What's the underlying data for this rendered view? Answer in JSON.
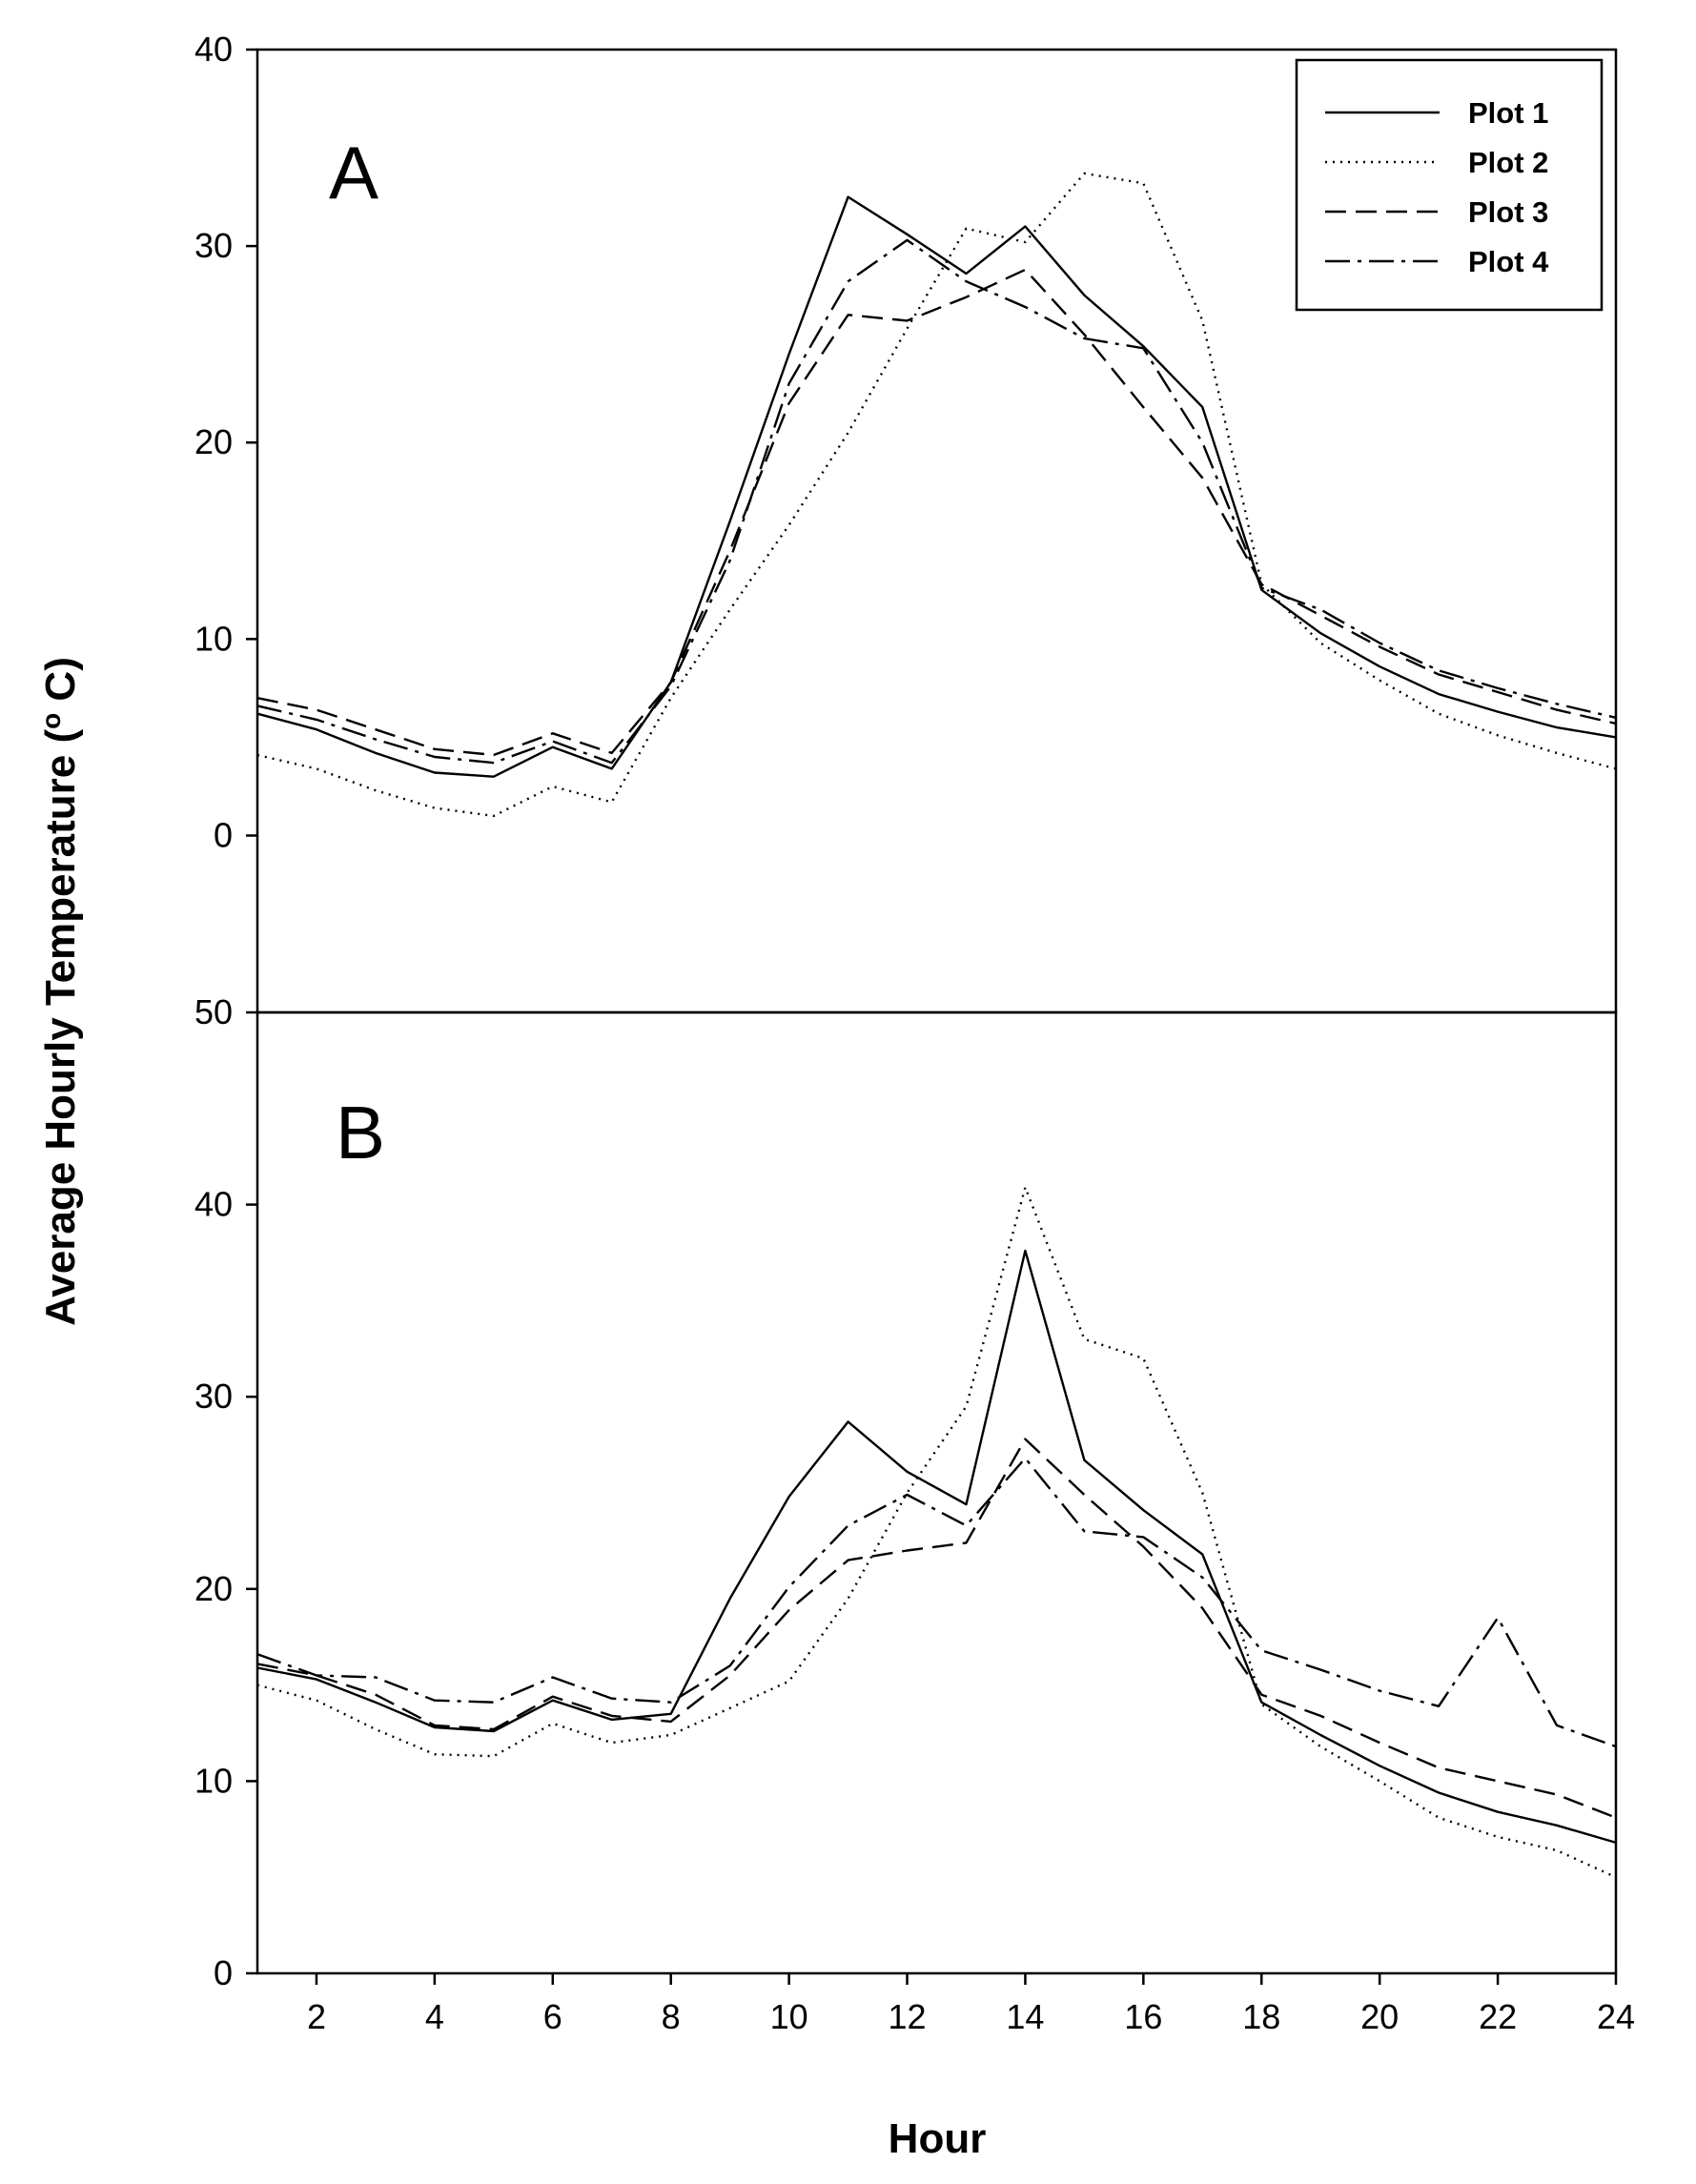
{
  "chart_data": [
    {
      "type": "line",
      "panel_label": "A",
      "x": [
        1,
        2,
        3,
        4,
        5,
        6,
        7,
        8,
        9,
        10,
        11,
        12,
        13,
        14,
        15,
        16,
        17,
        18,
        19,
        20,
        21,
        22,
        23,
        24
      ],
      "xlim": [
        1,
        24
      ],
      "ylim": [
        -9,
        40
      ],
      "yticks": [
        0,
        10,
        20,
        30,
        40
      ],
      "legend_position": "top-right",
      "series": [
        {
          "name": "Plot 1",
          "dash": "solid",
          "values": [
            6.2,
            5.4,
            4.2,
            3.2,
            3.0,
            4.5,
            3.4,
            7.8,
            16.0,
            24.5,
            32.5,
            30.6,
            28.6,
            31.0,
            27.5,
            24.9,
            21.8,
            12.5,
            10.3,
            8.6,
            7.2,
            6.3,
            5.5,
            5.0
          ]
        },
        {
          "name": "Plot 2",
          "dash": "dotted",
          "values": [
            4.1,
            3.4,
            2.3,
            1.4,
            1.0,
            2.5,
            1.7,
            7.0,
            11.5,
            15.8,
            20.5,
            25.8,
            30.9,
            30.2,
            33.7,
            33.2,
            26.2,
            12.8,
            9.8,
            7.9,
            6.2,
            5.1,
            4.2,
            3.4
          ]
        },
        {
          "name": "Plot 3",
          "dash": "dashed",
          "values": [
            7.0,
            6.4,
            5.4,
            4.4,
            4.1,
            5.2,
            4.2,
            7.8,
            14.5,
            22.0,
            26.5,
            26.2,
            27.4,
            28.8,
            25.5,
            21.8,
            18.2,
            12.8,
            11.2,
            9.6,
            8.2,
            7.3,
            6.4,
            5.7
          ]
        },
        {
          "name": "Plot 4",
          "dash": "dashdot",
          "values": [
            6.6,
            5.9,
            4.9,
            4.0,
            3.7,
            4.8,
            3.7,
            7.6,
            14.0,
            23.0,
            28.2,
            30.3,
            28.2,
            26.9,
            25.3,
            24.8,
            20.0,
            12.6,
            11.5,
            9.8,
            8.4,
            7.5,
            6.7,
            6.0
          ]
        }
      ]
    },
    {
      "type": "line",
      "panel_label": "B",
      "x": [
        1,
        2,
        3,
        4,
        5,
        6,
        7,
        8,
        9,
        10,
        11,
        12,
        13,
        14,
        15,
        16,
        17,
        18,
        19,
        20,
        21,
        22,
        23,
        24
      ],
      "xlim": [
        1,
        24
      ],
      "xticks": [
        2,
        4,
        6,
        8,
        10,
        12,
        14,
        16,
        18,
        20,
        22,
        24
      ],
      "ylim": [
        0,
        50
      ],
      "yticks": [
        0,
        10,
        20,
        30,
        40,
        50
      ],
      "series": [
        {
          "name": "Plot 1",
          "dash": "solid",
          "values": [
            15.9,
            15.3,
            14.1,
            12.8,
            12.6,
            14.2,
            13.2,
            13.5,
            19.5,
            24.8,
            28.7,
            26.1,
            24.4,
            37.6,
            26.7,
            24.1,
            21.8,
            14.1,
            12.4,
            10.8,
            9.4,
            8.4,
            7.7,
            6.8
          ]
        },
        {
          "name": "Plot 2",
          "dash": "dotted",
          "values": [
            15.0,
            14.2,
            12.7,
            11.4,
            11.3,
            13.0,
            12.0,
            12.4,
            13.8,
            15.2,
            19.5,
            25.0,
            29.5,
            40.9,
            33.0,
            32.0,
            25.0,
            14.0,
            11.8,
            10.0,
            8.1,
            7.1,
            6.4,
            5.0
          ]
        },
        {
          "name": "Plot 3",
          "dash": "dashed",
          "values": [
            16.1,
            15.5,
            14.5,
            12.9,
            12.7,
            14.4,
            13.4,
            13.1,
            15.5,
            18.9,
            21.5,
            22.0,
            22.4,
            27.8,
            24.9,
            22.2,
            19.0,
            14.5,
            13.4,
            12.0,
            10.7,
            10.0,
            9.3,
            8.1
          ]
        },
        {
          "name": "Plot 4",
          "dash": "dashdot",
          "values": [
            16.6,
            15.5,
            15.4,
            14.2,
            14.1,
            15.4,
            14.3,
            14.1,
            16.0,
            20.1,
            23.3,
            24.9,
            23.3,
            26.8,
            23.0,
            22.7,
            20.6,
            16.8,
            15.8,
            14.7,
            13.9,
            18.5,
            12.9,
            11.8
          ]
        }
      ]
    }
  ],
  "labels": {
    "y_axis_title": "Average Hourly Temperature (",
    "y_axis_sup": "o",
    "y_axis_tail": " C)",
    "x_axis_title": "Hour",
    "panel_a": "A",
    "panel_b": "B",
    "ytick_a": [
      "0",
      "10",
      "20",
      "30",
      "40"
    ],
    "ytick_b": [
      "0",
      "10",
      "20",
      "30",
      "40",
      "50"
    ],
    "xtick": [
      "2",
      "4",
      "6",
      "8",
      "10",
      "12",
      "14",
      "16",
      "18",
      "20",
      "22",
      "24"
    ],
    "legend": [
      "Plot 1",
      "Plot 2",
      "Plot 3",
      "Plot 4"
    ]
  }
}
